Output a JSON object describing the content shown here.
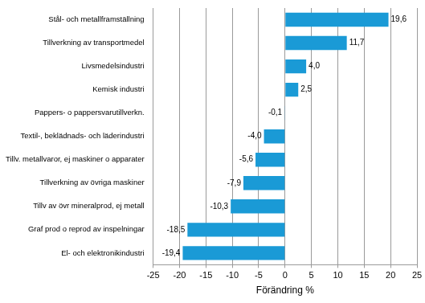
{
  "chart_data": {
    "type": "bar",
    "orientation": "horizontal",
    "categories": [
      "Stål- och metallframställning",
      "Tillverkning av transportmedel",
      "Livsmedelsindustri",
      "Kemisk industri",
      "Pappers- o pappersvarutillverkn.",
      "Textil-, beklädnads- och läderindustri",
      "Tillv. metallvaror, ej maskiner o apparater",
      "Tillverkning av övriga maskiner",
      "Tillv av övr mineralprod, ej metall",
      "Graf prod o reprod av inspelningar",
      "El- och elektronikindustri"
    ],
    "values": [
      19.6,
      11.7,
      4.0,
      2.5,
      -0.1,
      -4.0,
      -5.6,
      -7.9,
      -10.3,
      -18.5,
      -19.4
    ],
    "value_labels": [
      "19,6",
      "11,7",
      "4,0",
      "2,5",
      "-0,1",
      "-4,0",
      "-5,6",
      "-7,9",
      "-10,3",
      "-18,5",
      "-19,4"
    ],
    "data_labels": true,
    "color": "#1a9ad6",
    "x_label": "Förändring %",
    "xlim": [
      -25,
      25
    ],
    "xticks": [
      -25,
      -20,
      -15,
      -10,
      -5,
      0,
      5,
      10,
      15,
      20,
      25
    ],
    "grid": true
  }
}
